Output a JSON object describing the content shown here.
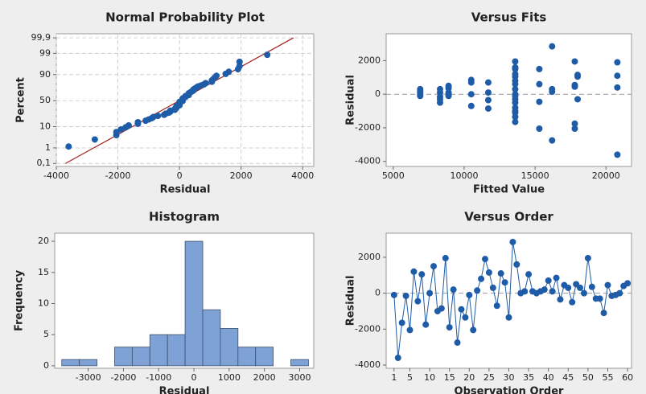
{
  "chart_data": [
    {
      "type": "probability",
      "title": "Normal Probability Plot",
      "xlabel": "Residual",
      "ylabel": "Percent",
      "xlim": [
        -4000,
        4360
      ],
      "xticks": [
        -4000,
        -2000,
        0,
        2000,
        4000
      ],
      "ylim": [
        0.06,
        99.95
      ],
      "yscale": "probit",
      "yticks": [
        {
          "value": 0.1,
          "label": "0,1"
        },
        1,
        10,
        50,
        90,
        99,
        {
          "value": 99.9,
          "label": "99,9"
        }
      ],
      "grid": true,
      "color": "#1f5ca8",
      "x": [
        -3600,
        -2750,
        -2050,
        -2050,
        -1900,
        -1750,
        -1650,
        -1350,
        -1350,
        -1100,
        -1000,
        -900,
        -850,
        -700,
        -500,
        -450,
        -350,
        -300,
        -300,
        -150,
        -150,
        -100,
        -100,
        -100,
        0,
        0,
        0,
        0,
        0,
        100,
        100,
        100,
        100,
        150,
        200,
        200,
        300,
        300,
        300,
        350,
        400,
        450,
        450,
        500,
        550,
        600,
        700,
        800,
        850,
        1050,
        1050,
        1100,
        1150,
        1200,
        1500,
        1600,
        1900,
        1950,
        1950,
        2850
      ],
      "values": [
        1.2,
        2.8,
        4.5,
        6.1,
        7.8,
        9.4,
        11.1,
        12.7,
        14.4,
        16.1,
        17.7,
        19.4,
        21.0,
        22.7,
        24.3,
        26.0,
        27.6,
        29.3,
        31.0,
        32.6,
        34.3,
        35.9,
        37.6,
        39.2,
        40.9,
        42.5,
        44.2,
        45.9,
        47.5,
        49.2,
        50.8,
        52.5,
        54.1,
        55.8,
        57.5,
        59.1,
        60.8,
        62.4,
        64.1,
        65.7,
        67.4,
        69.0,
        70.7,
        72.4,
        74.0,
        75.7,
        77.3,
        79.0,
        80.6,
        82.3,
        84.0,
        85.6,
        87.3,
        88.9,
        90.6,
        92.2,
        93.9,
        95.5,
        97.2,
        98.8
      ],
      "fit_line": {
        "x": [
          -3700,
          3700
        ],
        "values": [
          0.1,
          99.9
        ],
        "color": "#a32020"
      }
    },
    {
      "type": "scatter",
      "title": "Versus Fits",
      "xlabel": "Fitted Value",
      "ylabel": "Residual",
      "xlim": [
        4500,
        21800
      ],
      "xticks": [
        5000,
        10000,
        15000,
        20000
      ],
      "ylim": [
        -4300,
        3600
      ],
      "yticks": [
        -4000,
        -2000,
        0,
        2000
      ],
      "reference_line": 0,
      "color": "#1f5ca8",
      "x": [
        6900,
        6900,
        6900,
        6900,
        6900,
        8300,
        8300,
        8300,
        8300,
        8300,
        8900,
        8900,
        8900,
        8900,
        8900,
        10500,
        10500,
        10500,
        10500,
        11700,
        11700,
        11700,
        11700,
        13600,
        13600,
        13600,
        13600,
        13600,
        13600,
        13600,
        13600,
        13600,
        13600,
        13600,
        13600,
        13600,
        13600,
        13600,
        13600,
        13600,
        15300,
        15300,
        15300,
        15300,
        16200,
        16200,
        16200,
        16200,
        17800,
        17800,
        17800,
        17800,
        17800,
        18000,
        18000,
        18000,
        20800,
        20800,
        20800,
        20800
      ],
      "values": [
        300,
        200,
        100,
        0,
        -100,
        300,
        100,
        -150,
        -300,
        -500,
        500,
        350,
        100,
        0,
        -100,
        850,
        700,
        0,
        -700,
        700,
        100,
        -350,
        -850,
        1950,
        1600,
        1500,
        1200,
        1050,
        800,
        600,
        300,
        0,
        -100,
        -300,
        -500,
        -800,
        -1000,
        -1100,
        -1350,
        -1650,
        1500,
        600,
        -450,
        -2050,
        2850,
        300,
        150,
        -2750,
        1950,
        550,
        450,
        -1750,
        -2050,
        1150,
        1050,
        -300,
        1900,
        1100,
        400,
        -3600
      ]
    },
    {
      "type": "histogram",
      "title": "Histogram",
      "xlabel": "Residual",
      "ylabel": "Frequency",
      "xlim": [
        -3950,
        3400
      ],
      "xticks": [
        -3000,
        -2000,
        -1000,
        0,
        1000,
        2000,
        3000
      ],
      "ylim": [
        -0.4,
        21.3
      ],
      "yticks": [
        0,
        5,
        10,
        15,
        20
      ],
      "color": "#7ea1d6",
      "edgecolor": "#3b4f6e",
      "bins": [
        -3750,
        -3250,
        -2750,
        -2250,
        -1750,
        -1250,
        -750,
        -250,
        250,
        750,
        1250,
        1750,
        2250,
        2750,
        3250
      ],
      "values": [
        1,
        1,
        0,
        3,
        3,
        5,
        5,
        20,
        9,
        6,
        3,
        3,
        0,
        1
      ]
    },
    {
      "type": "line",
      "title": "Versus Order",
      "xlabel": "Observation Order",
      "ylabel": "Residual",
      "xlim": [
        -1,
        61
      ],
      "xticks": [
        1,
        5,
        10,
        15,
        20,
        25,
        30,
        35,
        40,
        45,
        50,
        55,
        60
      ],
      "ylim": [
        -4180,
        3340
      ],
      "yticks": [
        -4000,
        -2000,
        0,
        2000
      ],
      "reference_line": 0,
      "color": "#1f5ca8",
      "x": [
        1,
        2,
        3,
        4,
        5,
        6,
        7,
        8,
        9,
        10,
        11,
        12,
        13,
        14,
        15,
        16,
        17,
        18,
        19,
        20,
        21,
        22,
        23,
        24,
        25,
        26,
        27,
        28,
        29,
        30,
        31,
        32,
        33,
        34,
        35,
        36,
        37,
        38,
        39,
        40,
        41,
        42,
        43,
        44,
        45,
        46,
        47,
        48,
        49,
        50,
        51,
        52,
        53,
        54,
        55,
        56,
        57,
        58,
        59,
        60
      ],
      "values": [
        -100,
        -3600,
        -1650,
        -150,
        -2050,
        1200,
        -450,
        1050,
        -1750,
        0,
        1500,
        -1000,
        -850,
        1950,
        -1900,
        200,
        -2750,
        -900,
        -1350,
        -100,
        -2050,
        150,
        800,
        1900,
        1150,
        300,
        -700,
        1100,
        600,
        -1350,
        2850,
        1600,
        0,
        100,
        1050,
        100,
        0,
        100,
        200,
        700,
        100,
        850,
        -350,
        450,
        300,
        -500,
        500,
        300,
        0,
        1950,
        350,
        -300,
        -300,
        -1100,
        450,
        -150,
        -100,
        0,
        400,
        550
      ]
    }
  ]
}
